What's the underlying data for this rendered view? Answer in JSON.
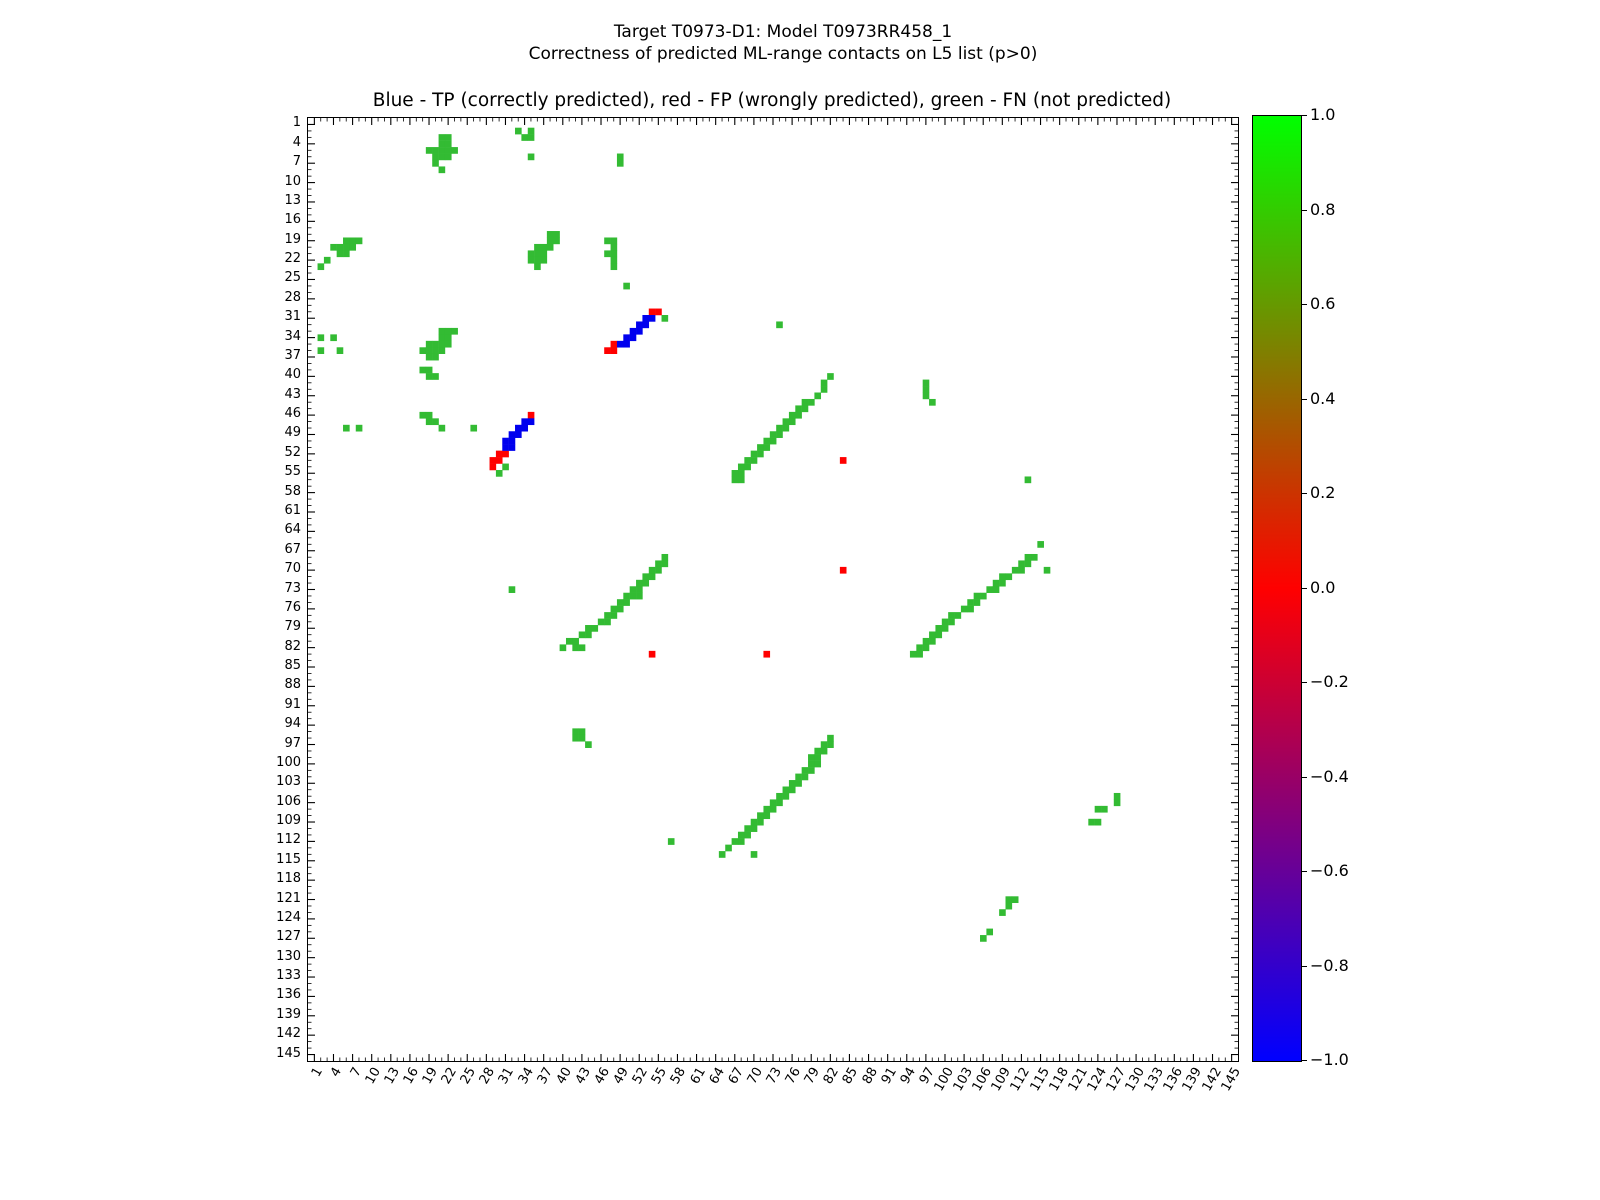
{
  "figure": {
    "title_line1": "Target T0973-D1: Model T0973RR458_1",
    "title_line2": "Correctness of predicted ML-range contacts on L5 list (p>0)",
    "axes_title": "Blue - TP (correctly predicted), red - FP (wrongly predicted), green - FN (not predicted)"
  },
  "chart_data": {
    "type": "heatmap",
    "title": "Blue - TP (correctly predicted), red - FP (wrongly predicted), green - FN (not predicted)",
    "xlabel": "",
    "ylabel": "",
    "axis_min": 0,
    "axis_max": 146,
    "grid": false,
    "tick_values": [
      1,
      4,
      7,
      10,
      13,
      16,
      19,
      22,
      25,
      28,
      31,
      34,
      37,
      40,
      43,
      46,
      49,
      52,
      55,
      58,
      61,
      64,
      67,
      70,
      73,
      76,
      79,
      82,
      85,
      88,
      91,
      94,
      97,
      100,
      103,
      106,
      109,
      112,
      115,
      118,
      121,
      124,
      127,
      130,
      133,
      136,
      139,
      142,
      145
    ],
    "legend": [
      {
        "key": "tp",
        "label": "TP (correctly predicted)",
        "color_name": "blue"
      },
      {
        "key": "fp",
        "label": "FP (wrongly predicted)",
        "color_name": "red"
      },
      {
        "key": "fn",
        "label": "FN (not predicted)",
        "color_name": "green"
      }
    ],
    "colors": {
      "tp": "#0000ee",
      "fp": "#ff0000",
      "fn": "#33bb33"
    },
    "colorbar": {
      "min": -1.0,
      "max": 1.0,
      "tick_labels": [
        "1.0",
        "0.8",
        "0.6",
        "0.4",
        "0.2",
        "0.0",
        "−0.2",
        "−0.4",
        "−0.6",
        "−0.8",
        "−1.0"
      ],
      "gradient_stops": [
        {
          "pos": "0%",
          "color": "#00ff00"
        },
        {
          "pos": "50%",
          "color": "#ff0000"
        },
        {
          "pos": "100%",
          "color": "#0000ff"
        }
      ]
    },
    "cells": {
      "fn": [
        [
          21,
          3
        ],
        [
          22,
          3
        ],
        [
          21,
          4
        ],
        [
          22,
          4
        ],
        [
          19,
          5
        ],
        [
          20,
          5
        ],
        [
          21,
          5
        ],
        [
          22,
          5
        ],
        [
          23,
          5
        ],
        [
          20,
          6
        ],
        [
          21,
          6
        ],
        [
          22,
          6
        ],
        [
          20,
          7
        ],
        [
          21,
          8
        ],
        [
          33,
          2
        ],
        [
          35,
          2
        ],
        [
          34,
          3
        ],
        [
          35,
          3
        ],
        [
          35,
          6
        ],
        [
          49,
          6
        ],
        [
          49,
          7
        ],
        [
          6,
          19
        ],
        [
          7,
          19
        ],
        [
          8,
          19
        ],
        [
          4,
          20
        ],
        [
          5,
          20
        ],
        [
          6,
          20
        ],
        [
          7,
          20
        ],
        [
          5,
          21
        ],
        [
          6,
          21
        ],
        [
          3,
          22
        ],
        [
          2,
          23
        ],
        [
          38,
          18
        ],
        [
          39,
          18
        ],
        [
          38,
          19
        ],
        [
          39,
          19
        ],
        [
          36,
          20
        ],
        [
          37,
          20
        ],
        [
          38,
          20
        ],
        [
          35,
          21
        ],
        [
          36,
          21
        ],
        [
          37,
          21
        ],
        [
          35,
          22
        ],
        [
          36,
          22
        ],
        [
          37,
          22
        ],
        [
          36,
          23
        ],
        [
          47,
          19
        ],
        [
          48,
          19
        ],
        [
          48,
          20
        ],
        [
          47,
          21
        ],
        [
          48,
          21
        ],
        [
          48,
          22
        ],
        [
          48,
          23
        ],
        [
          50,
          26
        ],
        [
          56,
          31
        ],
        [
          2,
          34
        ],
        [
          4,
          34
        ],
        [
          2,
          36
        ],
        [
          5,
          36
        ],
        [
          21,
          33
        ],
        [
          22,
          33
        ],
        [
          23,
          33
        ],
        [
          21,
          34
        ],
        [
          22,
          34
        ],
        [
          19,
          35
        ],
        [
          20,
          35
        ],
        [
          21,
          35
        ],
        [
          22,
          35
        ],
        [
          18,
          36
        ],
        [
          19,
          36
        ],
        [
          20,
          36
        ],
        [
          21,
          36
        ],
        [
          19,
          37
        ],
        [
          20,
          37
        ],
        [
          18,
          39
        ],
        [
          19,
          39
        ],
        [
          19,
          40
        ],
        [
          20,
          40
        ],
        [
          74,
          32
        ],
        [
          82,
          40
        ],
        [
          81,
          41
        ],
        [
          81,
          42
        ],
        [
          97,
          41
        ],
        [
          97,
          42
        ],
        [
          97,
          43
        ],
        [
          98,
          44
        ],
        [
          18,
          46
        ],
        [
          19,
          46
        ],
        [
          19,
          47
        ],
        [
          20,
          47
        ],
        [
          21,
          48
        ],
        [
          6,
          48
        ],
        [
          8,
          48
        ],
        [
          26,
          48
        ],
        [
          31,
          54
        ],
        [
          30,
          55
        ],
        [
          80,
          43
        ],
        [
          79,
          44
        ],
        [
          78,
          44
        ],
        [
          78,
          45
        ],
        [
          77,
          45
        ],
        [
          77,
          46
        ],
        [
          76,
          46
        ],
        [
          76,
          47
        ],
        [
          75,
          47
        ],
        [
          75,
          48
        ],
        [
          74,
          48
        ],
        [
          74,
          49
        ],
        [
          73,
          49
        ],
        [
          73,
          50
        ],
        [
          72,
          50
        ],
        [
          72,
          51
        ],
        [
          71,
          51
        ],
        [
          71,
          52
        ],
        [
          70,
          52
        ],
        [
          70,
          53
        ],
        [
          69,
          53
        ],
        [
          69,
          54
        ],
        [
          68,
          54
        ],
        [
          68,
          55
        ],
        [
          67,
          55
        ],
        [
          67,
          56
        ],
        [
          68,
          56
        ],
        [
          113,
          56
        ],
        [
          115,
          66
        ],
        [
          116,
          70
        ],
        [
          56,
          68
        ],
        [
          56,
          69
        ],
        [
          55,
          69
        ],
        [
          55,
          70
        ],
        [
          54,
          70
        ],
        [
          54,
          71
        ],
        [
          53,
          71
        ],
        [
          53,
          72
        ],
        [
          52,
          72
        ],
        [
          52,
          73
        ],
        [
          51,
          73
        ],
        [
          52,
          74
        ],
        [
          51,
          74
        ],
        [
          50,
          74
        ],
        [
          50,
          75
        ],
        [
          49,
          75
        ],
        [
          49,
          76
        ],
        [
          48,
          76
        ],
        [
          48,
          77
        ],
        [
          47,
          77
        ],
        [
          47,
          78
        ],
        [
          46,
          78
        ],
        [
          45,
          79
        ],
        [
          44,
          79
        ],
        [
          44,
          80
        ],
        [
          43,
          80
        ],
        [
          42,
          81
        ],
        [
          41,
          81
        ],
        [
          43,
          82
        ],
        [
          42,
          82
        ],
        [
          40,
          82
        ],
        [
          32,
          73
        ],
        [
          114,
          68
        ],
        [
          113,
          68
        ],
        [
          113,
          69
        ],
        [
          112,
          69
        ],
        [
          112,
          70
        ],
        [
          111,
          70
        ],
        [
          110,
          71
        ],
        [
          109,
          71
        ],
        [
          109,
          72
        ],
        [
          108,
          72
        ],
        [
          108,
          73
        ],
        [
          107,
          73
        ],
        [
          106,
          74
        ],
        [
          105,
          74
        ],
        [
          105,
          75
        ],
        [
          104,
          75
        ],
        [
          104,
          76
        ],
        [
          103,
          76
        ],
        [
          102,
          77
        ],
        [
          101,
          77
        ],
        [
          101,
          78
        ],
        [
          100,
          78
        ],
        [
          100,
          79
        ],
        [
          99,
          79
        ],
        [
          99,
          80
        ],
        [
          98,
          80
        ],
        [
          98,
          81
        ],
        [
          97,
          81
        ],
        [
          97,
          82
        ],
        [
          96,
          82
        ],
        [
          96,
          83
        ],
        [
          95,
          83
        ],
        [
          42,
          95
        ],
        [
          43,
          95
        ],
        [
          42,
          96
        ],
        [
          43,
          96
        ],
        [
          44,
          97
        ],
        [
          82,
          96
        ],
        [
          82,
          97
        ],
        [
          81,
          97
        ],
        [
          81,
          98
        ],
        [
          80,
          98
        ],
        [
          80,
          99
        ],
        [
          79,
          99
        ],
        [
          80,
          100
        ],
        [
          79,
          100
        ],
        [
          78,
          101
        ],
        [
          79,
          101
        ],
        [
          78,
          102
        ],
        [
          77,
          102
        ],
        [
          77,
          103
        ],
        [
          76,
          103
        ],
        [
          76,
          104
        ],
        [
          75,
          104
        ],
        [
          75,
          105
        ],
        [
          74,
          105
        ],
        [
          74,
          106
        ],
        [
          73,
          106
        ],
        [
          73,
          107
        ],
        [
          72,
          107
        ],
        [
          72,
          108
        ],
        [
          71,
          108
        ],
        [
          71,
          109
        ],
        [
          70,
          109
        ],
        [
          70,
          110
        ],
        [
          69,
          110
        ],
        [
          69,
          111
        ],
        [
          68,
          111
        ],
        [
          68,
          112
        ],
        [
          67,
          112
        ],
        [
          66,
          113
        ],
        [
          65,
          114
        ],
        [
          70,
          114
        ],
        [
          57,
          112
        ],
        [
          127,
          105
        ],
        [
          127,
          106
        ],
        [
          124,
          107
        ],
        [
          125,
          107
        ],
        [
          123,
          109
        ],
        [
          124,
          109
        ],
        [
          110,
          121
        ],
        [
          111,
          121
        ],
        [
          110,
          122
        ],
        [
          109,
          123
        ],
        [
          107,
          126
        ],
        [
          106,
          127
        ]
      ],
      "fp": [
        [
          54,
          30
        ],
        [
          55,
          30
        ],
        [
          48,
          35
        ],
        [
          47,
          36
        ],
        [
          48,
          36
        ],
        [
          35,
          46
        ],
        [
          30,
          52
        ],
        [
          31,
          52
        ],
        [
          29,
          53
        ],
        [
          30,
          53
        ],
        [
          29,
          54
        ],
        [
          84,
          53
        ],
        [
          84,
          70
        ],
        [
          54,
          83
        ],
        [
          72,
          83
        ]
      ],
      "tp": [
        [
          53,
          31
        ],
        [
          54,
          31
        ],
        [
          52,
          32
        ],
        [
          53,
          32
        ],
        [
          51,
          33
        ],
        [
          52,
          33
        ],
        [
          50,
          34
        ],
        [
          51,
          34
        ],
        [
          49,
          35
        ],
        [
          50,
          35
        ],
        [
          34,
          47
        ],
        [
          35,
          47
        ],
        [
          33,
          48
        ],
        [
          34,
          48
        ],
        [
          32,
          49
        ],
        [
          33,
          49
        ],
        [
          31,
          50
        ],
        [
          32,
          50
        ],
        [
          31,
          51
        ],
        [
          32,
          51
        ]
      ]
    }
  }
}
